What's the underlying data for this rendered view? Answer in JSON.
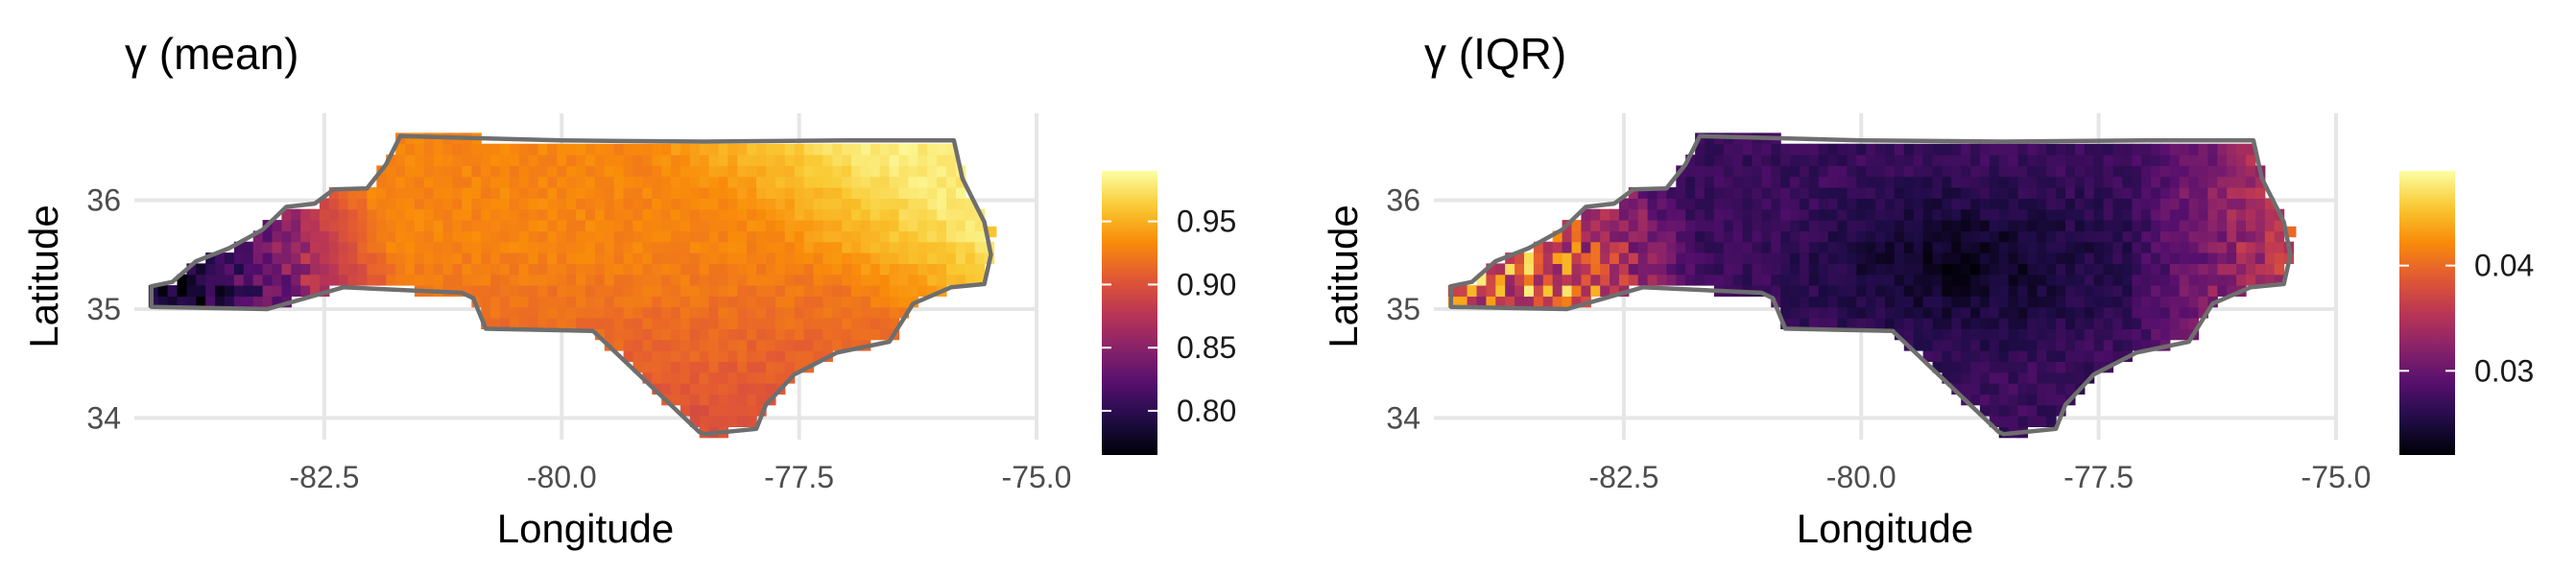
{
  "chart_data": [
    {
      "type": "heatmap",
      "title": "γ (mean)",
      "xlabel": "Longitude",
      "ylabel": "Latitude",
      "xlim": [
        -84.5,
        -75.0
      ],
      "ylim": [
        33.8,
        36.8
      ],
      "x_ticks": [
        "-82.5",
        "-80.0",
        "-77.5",
        "-75.0"
      ],
      "x_tick_values": [
        -82.5,
        -80.0,
        -77.5,
        -75.0
      ],
      "y_ticks": [
        "34",
        "35",
        "36"
      ],
      "y_tick_values": [
        34,
        35,
        36
      ],
      "colorbar": {
        "palette": "inferno",
        "range": [
          0.765,
          0.99
        ],
        "ticks": [
          "0.80",
          "0.85",
          "0.90",
          "0.95"
        ],
        "tick_values": [
          0.8,
          0.85,
          0.9,
          0.95
        ]
      },
      "field": {
        "description": "gridded values over North Carolina",
        "west_mountain_min": 0.78,
        "piedmont": 0.93,
        "south_central": 0.9,
        "northeast_max": 0.98
      },
      "grid": true
    },
    {
      "type": "heatmap",
      "title": "γ (IQR)",
      "xlabel": "Longitude",
      "ylabel": "Latitude",
      "xlim": [
        -84.5,
        -75.0
      ],
      "ylim": [
        33.8,
        36.8
      ],
      "x_ticks": [
        "-82.5",
        "-80.0",
        "-77.5",
        "-75.0"
      ],
      "x_tick_values": [
        -82.5,
        -80.0,
        -77.5,
        -75.0
      ],
      "y_ticks": [
        "34",
        "35",
        "36"
      ],
      "y_tick_values": [
        34,
        35,
        36
      ],
      "colorbar": {
        "palette": "inferno",
        "range": [
          0.022,
          0.049
        ],
        "ticks": [
          "0.03",
          "0.04"
        ],
        "tick_values": [
          0.03,
          0.04
        ]
      },
      "field": {
        "description": "gridded values over North Carolina",
        "interior_min": 0.023,
        "west_mountain_high": 0.04,
        "coast": 0.032
      },
      "grid": true
    }
  ]
}
